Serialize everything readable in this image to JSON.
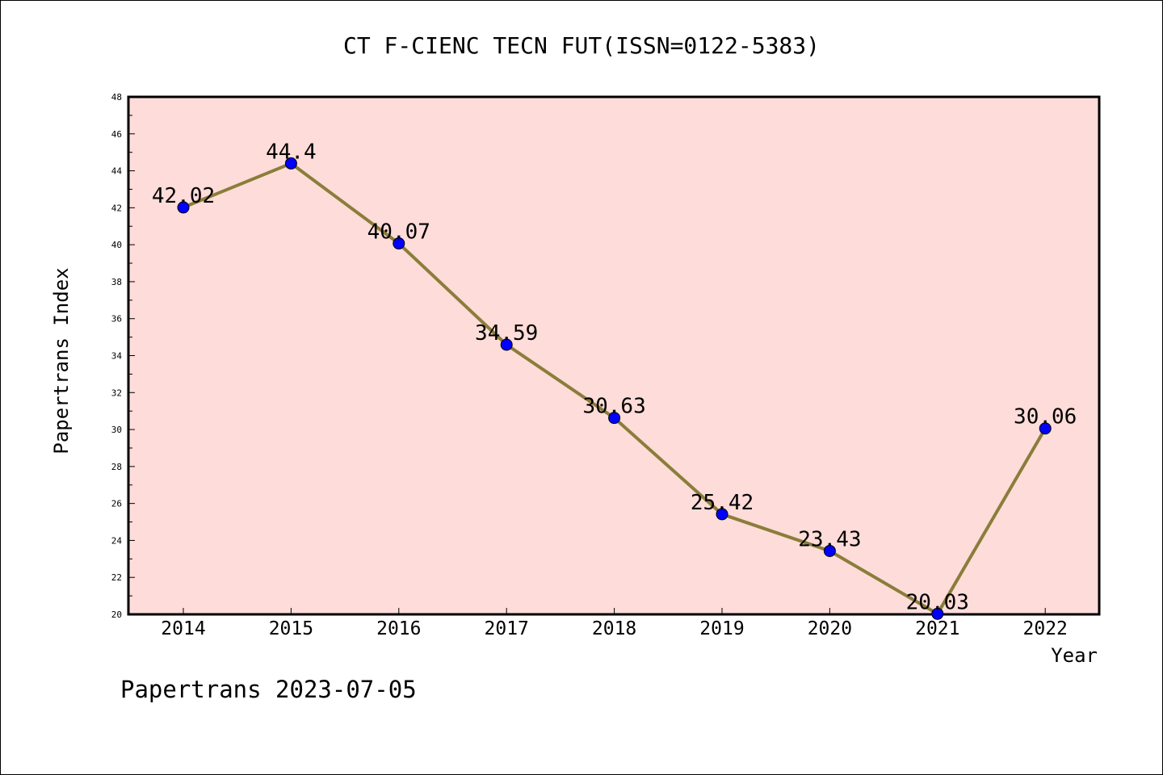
{
  "chart_data": {
    "type": "line",
    "title": "CT F-CIENC TECN FUT(ISSN=0122-5383)",
    "xlabel": "Year",
    "ylabel": "Papertrans Index",
    "categories": [
      "2014",
      "2015",
      "2016",
      "2017",
      "2018",
      "2019",
      "2020",
      "2021",
      "2022"
    ],
    "values": [
      42.02,
      44.4,
      40.07,
      34.59,
      30.63,
      25.42,
      23.43,
      20.03,
      30.06
    ],
    "data_labels": [
      "42.02",
      "44.4",
      "40.07",
      "34.59",
      "30.63",
      "25.42",
      "23.43",
      "20.03",
      "30.06"
    ],
    "ylim": [
      20,
      48
    ],
    "yticks": [
      "20",
      "22",
      "24",
      "26",
      "28",
      "30",
      "32",
      "34",
      "36",
      "38",
      "40",
      "42",
      "44",
      "46",
      "48"
    ],
    "grid": false,
    "colors": {
      "plot_background": "#fddcd9",
      "line": "#8b7d3a",
      "marker": "#0000ff"
    }
  },
  "footer": "Papertrans 2023-07-05"
}
